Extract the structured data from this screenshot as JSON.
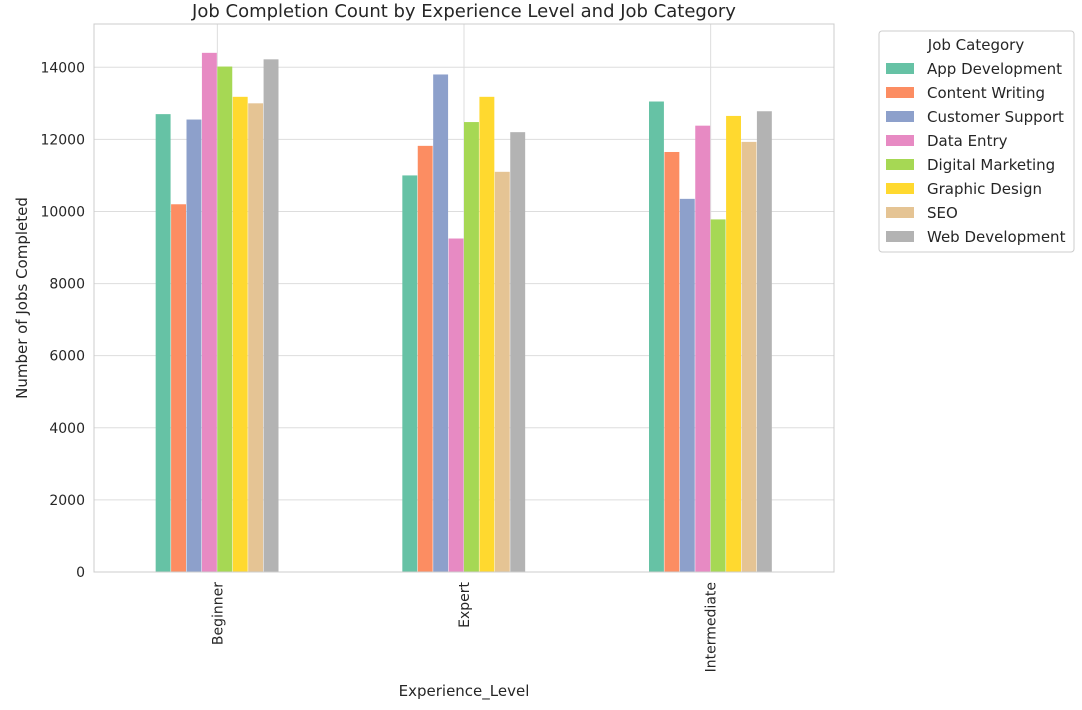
{
  "chart_data": {
    "type": "bar",
    "title": "Job Completion Count by Experience Level and Job Category",
    "xlabel": "Experience_Level",
    "ylabel": "Number of Jobs Completed",
    "categories": [
      "Beginner",
      "Expert",
      "Intermediate"
    ],
    "ylim": [
      0,
      15200
    ],
    "yticks": [
      0,
      2000,
      4000,
      6000,
      8000,
      10000,
      12000,
      14000
    ],
    "grid": true,
    "legend": {
      "title": "Job Category",
      "placement": "outside-top-right"
    },
    "series": [
      {
        "name": "App Development",
        "color": "#66c2a5",
        "values": [
          12700,
          11000,
          13050
        ]
      },
      {
        "name": "Content Writing",
        "color": "#fc8d62",
        "values": [
          10200,
          11820,
          11650
        ]
      },
      {
        "name": "Customer Support",
        "color": "#8da0cb",
        "values": [
          12550,
          13800,
          10350
        ]
      },
      {
        "name": "Data Entry",
        "color": "#e78ac3",
        "values": [
          14400,
          9250,
          12380
        ]
      },
      {
        "name": "Digital Marketing",
        "color": "#a6d854",
        "values": [
          14020,
          12480,
          9780
        ]
      },
      {
        "name": "Graphic Design",
        "color": "#ffd92f",
        "values": [
          13180,
          13180,
          12650
        ]
      },
      {
        "name": "SEO",
        "color": "#e5c494",
        "values": [
          13000,
          11100,
          11930
        ]
      },
      {
        "name": "Web Development",
        "color": "#b3b3b3",
        "values": [
          14220,
          12200,
          12780
        ]
      }
    ]
  }
}
